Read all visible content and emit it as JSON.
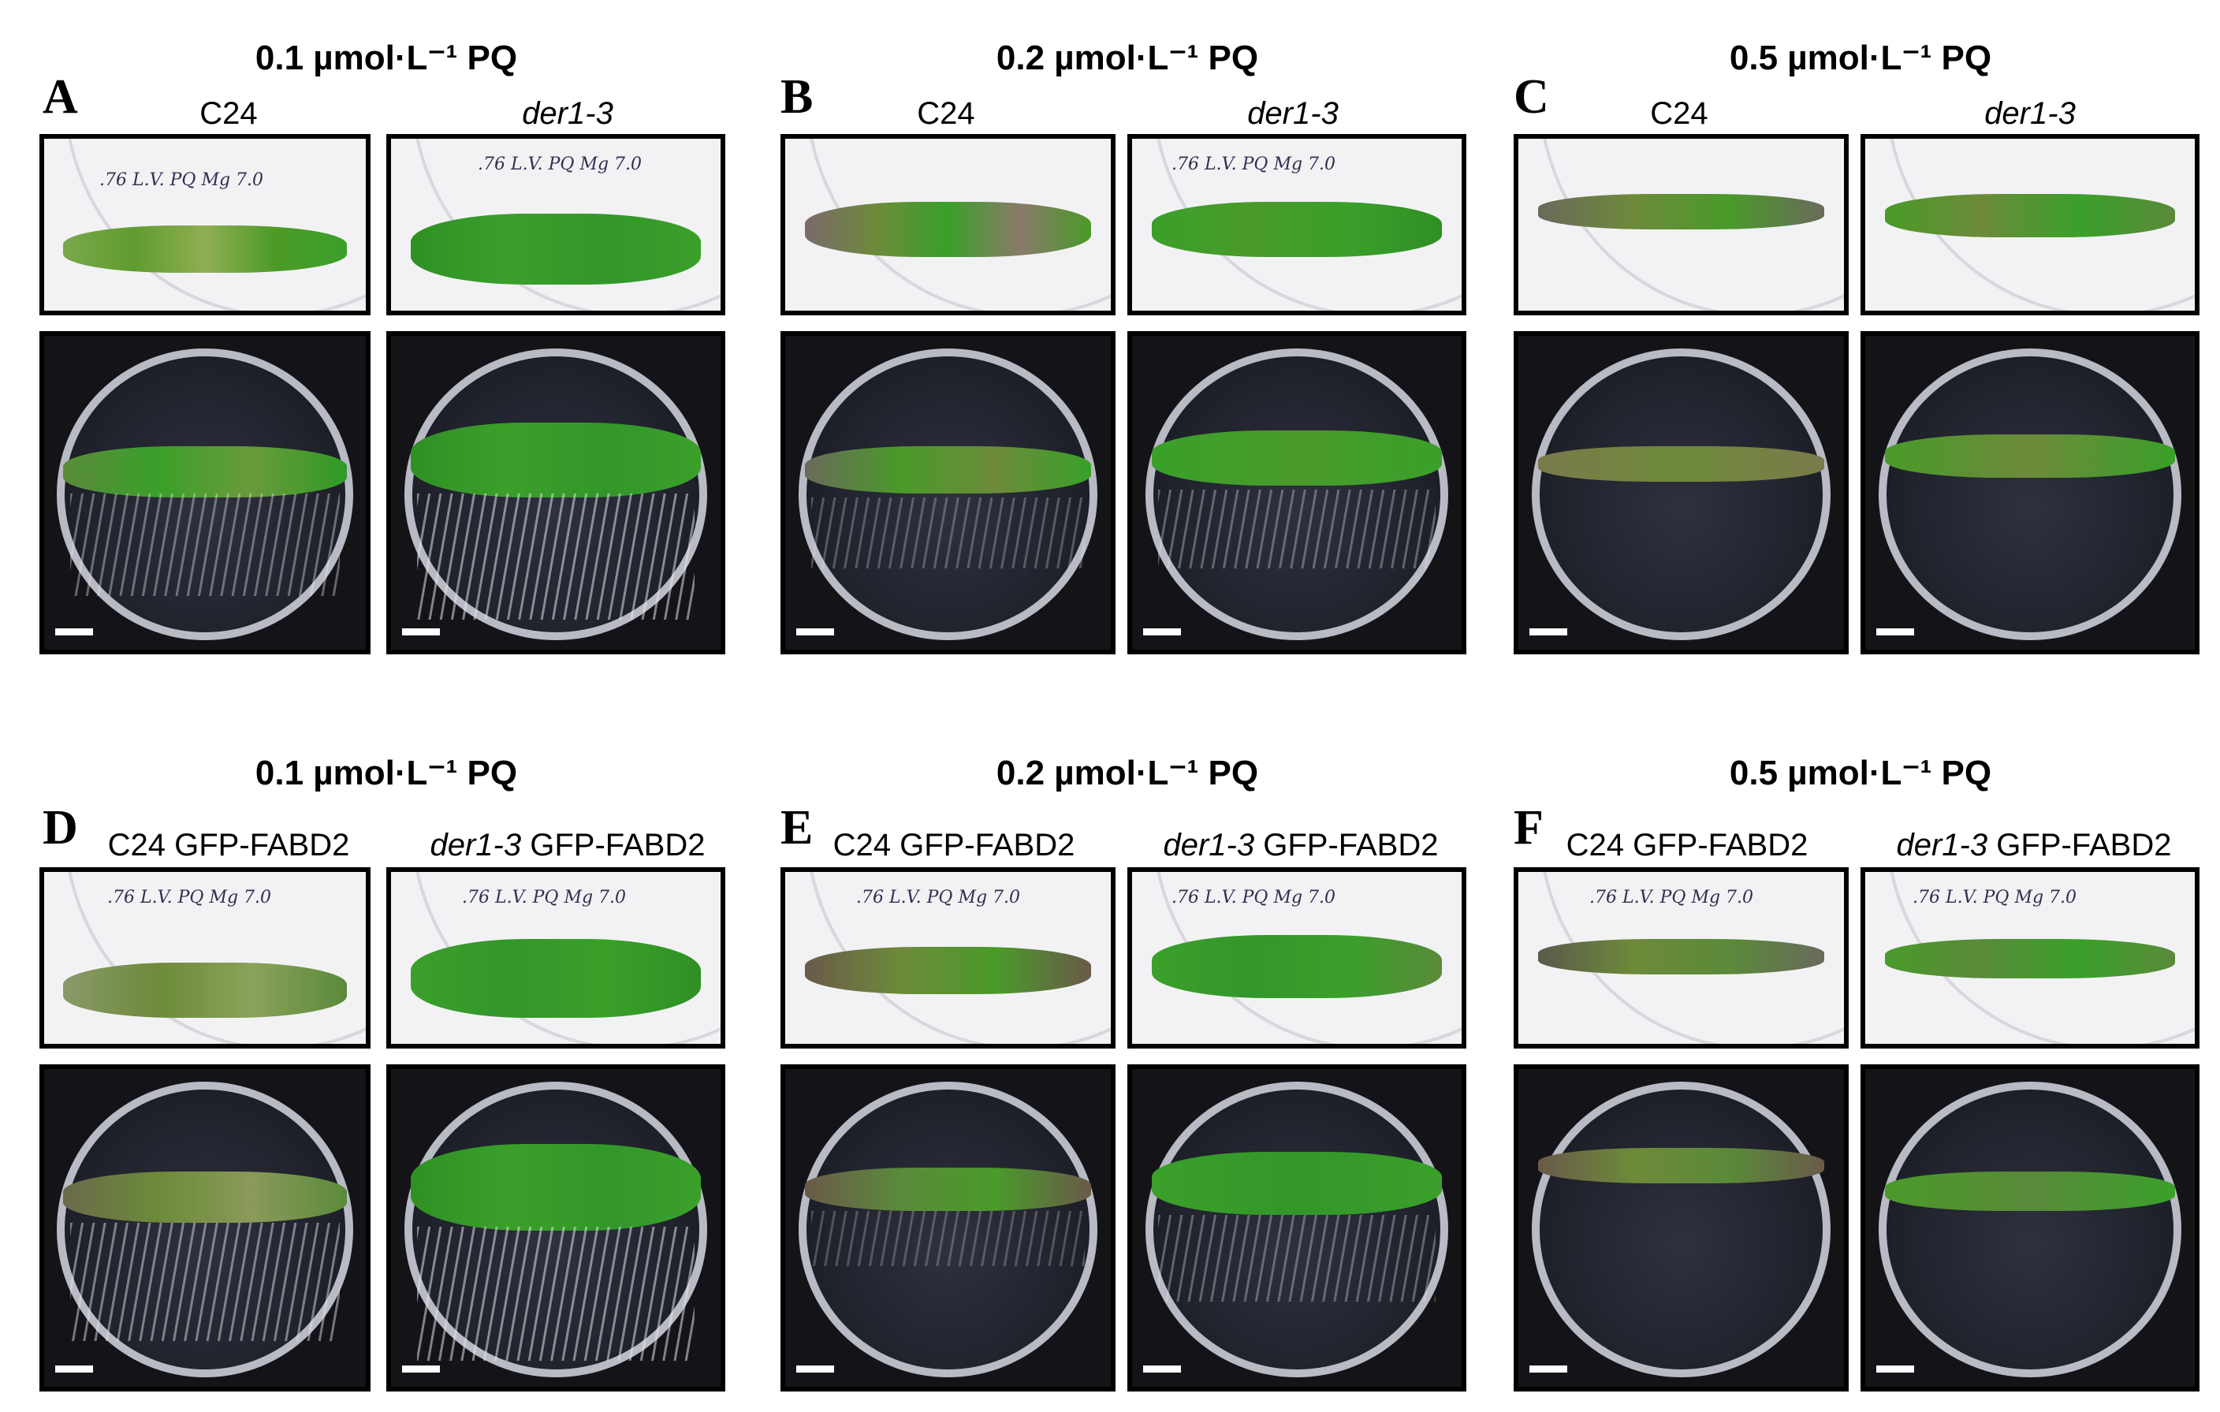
{
  "rows": [
    {
      "panels": [
        {
          "letter": "A",
          "title": "0.1 µmol·L⁻¹ PQ",
          "left_label": "C24",
          "right_label": "der1-3",
          "right_italic_only": true
        },
        {
          "letter": "B",
          "title": "0.2 µmol·L⁻¹ PQ",
          "left_label": "C24",
          "right_label": "der1-3",
          "right_italic_only": true
        },
        {
          "letter": "C",
          "title": "0.5 µmol·L⁻¹ PQ",
          "left_label": "C24",
          "right_label": "der1-3",
          "right_italic_only": true
        }
      ]
    },
    {
      "panels": [
        {
          "letter": "D",
          "title": "0.1 µmol·L⁻¹ PQ",
          "left_label": "C24 GFP-FABD2",
          "right_italic": "der1-3",
          "right_plain": " GFP-FABD2"
        },
        {
          "letter": "E",
          "title": "0.2 µmol·L⁻¹ PQ",
          "left_label": "C24 GFP-FABD2",
          "right_italic": "der1-3",
          "right_plain": " GFP-FABD2"
        },
        {
          "letter": "F",
          "title": "0.5 µmol·L⁻¹ PQ",
          "left_label": "C24 GFP-FABD2",
          "right_italic": "der1-3",
          "right_plain": " GFP-FABD2"
        }
      ]
    }
  ],
  "plate_writing": ".76 L.V. PQ Mg 7.0",
  "colors": {
    "healthy_green": "#3aa02a",
    "stressed_green": "#6d8a3a",
    "plate_background": "#f2f2f5",
    "dark_background": "#141418",
    "roots": "#e6e6eb"
  }
}
